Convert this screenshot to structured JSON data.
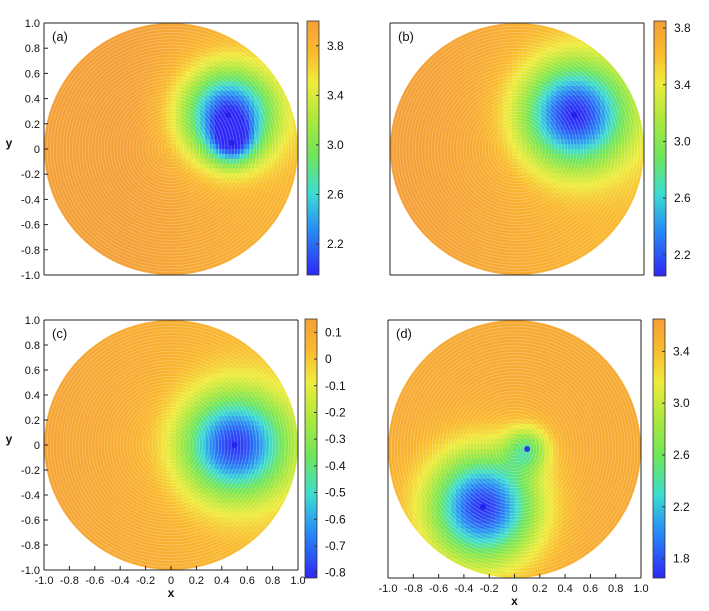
{
  "chart_data": [
    {
      "type": "heatmap",
      "panel_label": "(a)",
      "xlabel": "",
      "ylabel": "y",
      "xlim": [
        -1.0,
        1.0
      ],
      "ylim": [
        -1.0,
        1.0
      ],
      "x_ticks": [],
      "y_ticks": [
        "1.0",
        "0.8",
        "0.6",
        "0.4",
        "0.2",
        "0",
        "-0.2",
        "-0.4",
        "-0.6",
        "-0.8",
        "-1.0"
      ],
      "colorbar": {
        "min": 1.95,
        "max": 4.0,
        "ticks": [
          {
            "value": 3.8,
            "label": "3.8"
          },
          {
            "value": 3.4,
            "label": "3.4"
          },
          {
            "value": 3.0,
            "label": "3.0"
          },
          {
            "value": 2.6,
            "label": "2.6"
          },
          {
            "value": 2.2,
            "label": "2.2"
          }
        ]
      },
      "field": {
        "base": 3.95,
        "sources": [
          {
            "x": 0.45,
            "y": 0.27,
            "strength": -1.9,
            "width": 0.26
          },
          {
            "x": 0.48,
            "y": 0.05,
            "strength": -0.9,
            "width": 0.12
          }
        ],
        "gradient": {
          "x": -0.15,
          "y": 0.0
        }
      }
    },
    {
      "type": "heatmap",
      "panel_label": "(b)",
      "xlabel": "",
      "ylabel": "",
      "xlim": [
        -1.0,
        1.0
      ],
      "ylim": [
        -1.0,
        1.0
      ],
      "x_ticks": [],
      "y_ticks": [],
      "colorbar": {
        "min": 2.05,
        "max": 3.85,
        "ticks": [
          {
            "value": 3.8,
            "label": "3.8"
          },
          {
            "value": 3.4,
            "label": "3.4"
          },
          {
            "value": 3.0,
            "label": "3.0"
          },
          {
            "value": 2.6,
            "label": "2.6"
          },
          {
            "value": 2.2,
            "label": "2.2"
          }
        ]
      },
      "field": {
        "base": 3.75,
        "sources": [
          {
            "x": 0.45,
            "y": 0.27,
            "strength": -1.65,
            "width": 0.3
          }
        ],
        "gradient": {
          "x": -0.12,
          "y": 0.0
        }
      }
    },
    {
      "type": "heatmap",
      "panel_label": "(c)",
      "xlabel": "x",
      "ylabel": "y",
      "xlim": [
        -1.0,
        1.0
      ],
      "ylim": [
        -1.0,
        1.0
      ],
      "x_ticks": [
        "-1.0",
        "-0.8",
        "-0.6",
        "-0.4",
        "-0.2",
        "0",
        "0.2",
        "0.4",
        "0.6",
        "0.8",
        "1.0"
      ],
      "y_ticks": [
        "1.0",
        "0.8",
        "0.6",
        "0.4",
        "0.2",
        "0",
        "-0.2",
        "-0.4",
        "-0.6",
        "-0.8",
        "-1.0"
      ],
      "colorbar": {
        "min": -0.82,
        "max": 0.15,
        "ticks": [
          {
            "value": 0.1,
            "label": "0.1"
          },
          {
            "value": 0.0,
            "label": "0"
          },
          {
            "value": -0.1,
            "label": "-0.1"
          },
          {
            "value": -0.2,
            "label": "-0.2"
          },
          {
            "value": -0.3,
            "label": "-0.3"
          },
          {
            "value": -0.4,
            "label": "-0.4"
          },
          {
            "value": -0.5,
            "label": "-0.5"
          },
          {
            "value": -0.6,
            "label": "-0.6"
          },
          {
            "value": -0.7,
            "label": "-0.7"
          },
          {
            "value": -0.8,
            "label": "-0.8"
          }
        ]
      },
      "field": {
        "base": 0.08,
        "sources": [
          {
            "x": 0.5,
            "y": 0.0,
            "strength": -0.85,
            "width": 0.3
          }
        ],
        "gradient": {
          "x": -0.05,
          "y": 0.0
        }
      }
    },
    {
      "type": "heatmap",
      "panel_label": "(d)",
      "xlabel": "x",
      "ylabel": "",
      "xlim": [
        -1.0,
        1.0
      ],
      "ylim": [
        -1.0,
        1.0
      ],
      "x_ticks": [
        "-1.0",
        "-0.8",
        "-0.6",
        "-0.4",
        "-0.2",
        "0",
        "0.2",
        "0.4",
        "0.6",
        "0.8",
        "1.0"
      ],
      "y_ticks": [],
      "colorbar": {
        "min": 1.65,
        "max": 3.65,
        "ticks": [
          {
            "value": 3.4,
            "label": "3.4"
          },
          {
            "value": 3.0,
            "label": "3.0"
          },
          {
            "value": 2.6,
            "label": "2.6"
          },
          {
            "value": 2.2,
            "label": "2.2"
          },
          {
            "value": 1.8,
            "label": "1.8"
          }
        ]
      },
      "field": {
        "base": 3.55,
        "sources": [
          {
            "x": -0.25,
            "y": -0.45,
            "strength": -1.85,
            "width": 0.3
          },
          {
            "x": 0.1,
            "y": 0.0,
            "strength": -0.8,
            "width": 0.12
          }
        ],
        "gradient": {
          "x": 0.0,
          "y": 0.0
        }
      }
    }
  ]
}
